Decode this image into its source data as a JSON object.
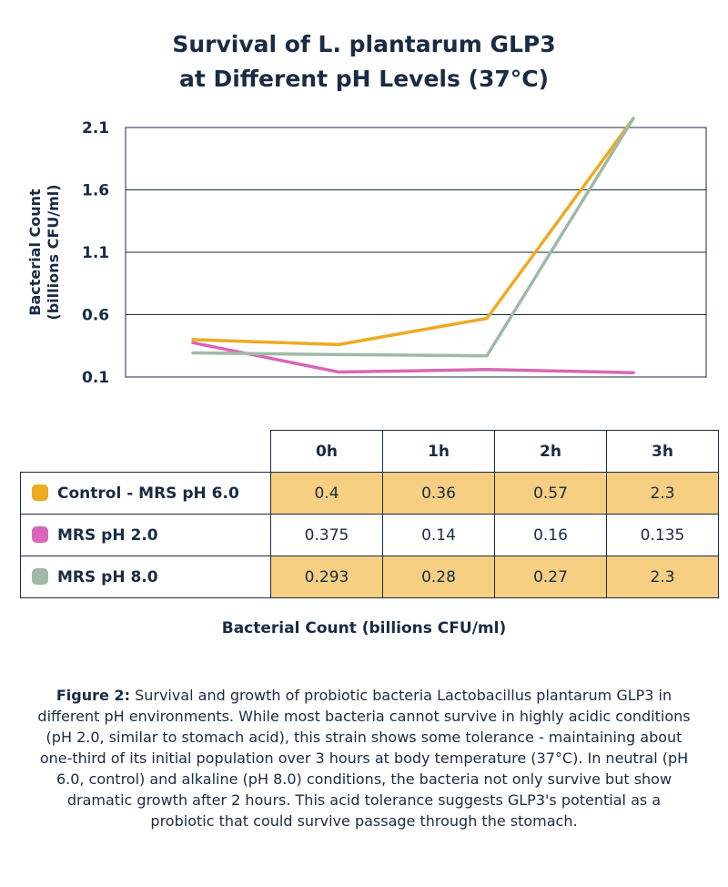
{
  "chart_data": {
    "type": "line",
    "title": "Survival of L. plantarum GLP3 at Different pH Levels (37°C)",
    "title_lines": [
      "Survival of L. plantarum GLP3",
      "at Different pH Levels (37°C)"
    ],
    "ylabel_lines": [
      "Bacterial Count",
      "(billions CFU/ml)"
    ],
    "xlabel": "Bacterial Count (billions CFU/ml)",
    "ylim": [
      0.1,
      2.1
    ],
    "yticks": [
      "2.1",
      "1.6",
      "1.1",
      "0.6",
      "0.1"
    ],
    "ytick_values": [
      2.1,
      1.6,
      1.1,
      0.6,
      0.1
    ],
    "grid": true,
    "categories": [
      "0h",
      "1h",
      "2h",
      "3h"
    ],
    "series": [
      {
        "name": "Control - MRS pH 6.0",
        "color": "#eeaa22",
        "values": [
          0.4,
          0.36,
          0.57,
          2.3
        ],
        "display": [
          "0.4",
          "0.36",
          "0.57",
          "2.3"
        ],
        "highlight": true
      },
      {
        "name": "MRS pH 2.0",
        "color": "#d966b8",
        "values": [
          0.375,
          0.14,
          0.16,
          0.135
        ],
        "display": [
          "0.375",
          "0.14",
          "0.16",
          "0.135"
        ],
        "highlight": false
      },
      {
        "name": "MRS pH 8.0",
        "color": "#a0b9a6",
        "values": [
          0.293,
          0.28,
          0.27,
          2.3
        ],
        "display": [
          "0.293",
          "0.28",
          "0.27",
          "2.3"
        ],
        "highlight": true
      }
    ]
  },
  "caption": {
    "label": "Figure 2:",
    "text": "Survival and growth of probiotic bacteria Lactobacillus plantarum GLP3 in different pH environments. While most bacteria cannot survive in highly acidic conditions (pH 2.0, similar to stomach acid), this strain shows some tolerance - maintaining about one-third of its initial population over 3 hours at body temperature (37°C). In neutral (pH 6.0, control) and alkaline (pH 8.0) conditions, the bacteria not only survive but show dramatic growth after 2 hours. This acid tolerance suggests GLP3's potential as a probiotic that could survive passage through the stomach."
  }
}
